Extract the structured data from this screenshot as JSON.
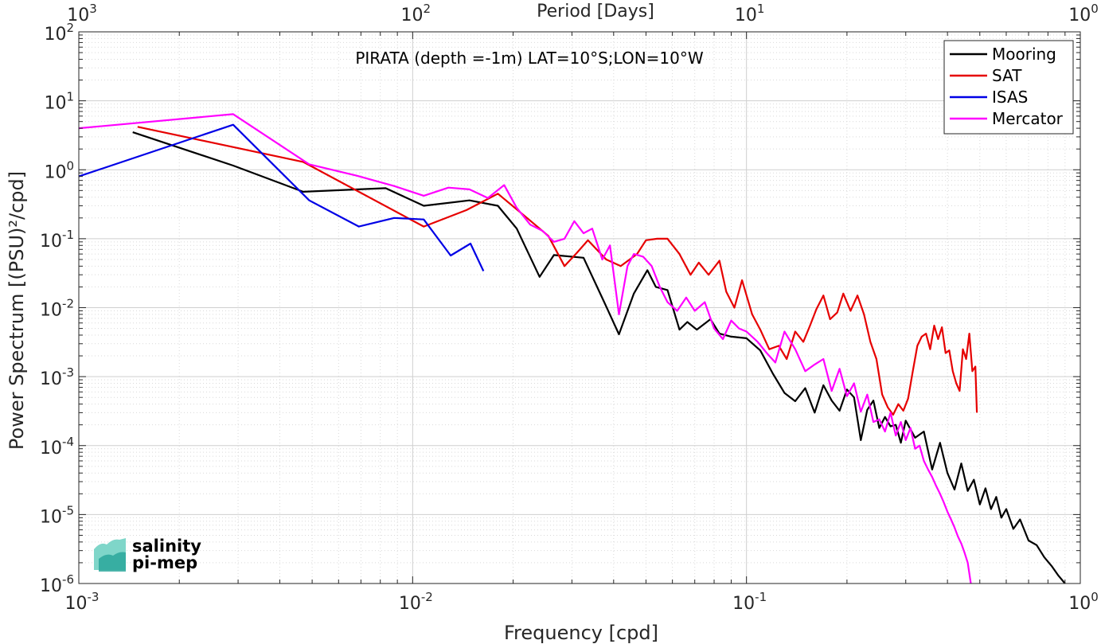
{
  "chart_data": {
    "type": "line",
    "annotation": "PIRATA (depth =-1m) LAT=10°S;LON=10°W",
    "xlabel": "Frequency [cpd]",
    "ylabel": "Power Spectrum [(PSU)²/cpd]",
    "x2label": "Period [Days]",
    "xscale": "log",
    "yscale": "log",
    "xlim": [
      0.001,
      1
    ],
    "ylim": [
      1e-06,
      100
    ],
    "grid": true,
    "legend_position": "top-right",
    "x_ticks": [
      {
        "base": "10",
        "exp": "-3"
      },
      {
        "base": "10",
        "exp": "-2"
      },
      {
        "base": "10",
        "exp": "-1"
      },
      {
        "base": "10",
        "exp": "0"
      }
    ],
    "x2_ticks": [
      {
        "base": "10",
        "exp": "3"
      },
      {
        "base": "10",
        "exp": "2"
      },
      {
        "base": "10",
        "exp": "1"
      },
      {
        "base": "10",
        "exp": "0"
      }
    ],
    "y_ticks": [
      {
        "base": "10",
        "exp": "-6"
      },
      {
        "base": "10",
        "exp": "-5"
      },
      {
        "base": "10",
        "exp": "-4"
      },
      {
        "base": "10",
        "exp": "-3"
      },
      {
        "base": "10",
        "exp": "-2"
      },
      {
        "base": "10",
        "exp": "-1"
      },
      {
        "base": "10",
        "exp": "0"
      },
      {
        "base": "10",
        "exp": "1"
      },
      {
        "base": "10",
        "exp": "2"
      }
    ],
    "series": [
      {
        "name": "Mooring",
        "color": "#000000",
        "x": [
          0.00145,
          0.0029,
          0.0047,
          0.0083,
          0.0108,
          0.0148,
          0.018,
          0.0205,
          0.024,
          0.0265,
          0.0325,
          0.0375,
          0.0415,
          0.046,
          0.0505,
          0.0535,
          0.058,
          0.063,
          0.0665,
          0.071,
          0.078,
          0.083,
          0.09,
          0.1,
          0.11,
          0.12,
          0.13,
          0.14,
          0.15,
          0.16,
          0.17,
          0.18,
          0.19,
          0.2,
          0.21,
          0.22,
          0.23,
          0.24,
          0.25,
          0.26,
          0.27,
          0.28,
          0.29,
          0.3,
          0.32,
          0.34,
          0.36,
          0.38,
          0.4,
          0.42,
          0.44,
          0.46,
          0.48,
          0.5,
          0.52,
          0.54,
          0.56,
          0.58,
          0.6,
          0.63,
          0.66,
          0.7,
          0.74,
          0.78,
          0.82,
          0.86,
          0.9
        ],
        "y": [
          3.5,
          1.15,
          0.48,
          0.54,
          0.3,
          0.36,
          0.3,
          0.14,
          0.028,
          0.058,
          0.053,
          0.012,
          0.0041,
          0.016,
          0.035,
          0.02,
          0.018,
          0.0048,
          0.0062,
          0.0048,
          0.0068,
          0.0042,
          0.0038,
          0.0036,
          0.0024,
          0.0011,
          0.00058,
          0.00044,
          0.00068,
          0.0003,
          0.00075,
          0.00045,
          0.00032,
          0.00065,
          0.0005,
          0.00012,
          0.00033,
          0.00045,
          0.00018,
          0.00026,
          0.00019,
          0.0002,
          0.00011,
          0.00023,
          0.00013,
          0.00016,
          4.5e-05,
          0.00011,
          4e-05,
          2.3e-05,
          5.5e-05,
          2.2e-05,
          3.2e-05,
          1.4e-05,
          2.4e-05,
          1.2e-05,
          1.8e-05,
          9e-06,
          1.2e-05,
          6.2e-06,
          8.5e-06,
          4.2e-06,
          3.6e-06,
          2.4e-06,
          1.8e-06,
          1.3e-06,
          1e-06
        ]
      },
      {
        "name": "SAT",
        "color": "#e60000",
        "x": [
          0.0015,
          0.0047,
          0.0108,
          0.0145,
          0.018,
          0.0215,
          0.0255,
          0.0285,
          0.031,
          0.0335,
          0.038,
          0.042,
          0.047,
          0.05,
          0.054,
          0.058,
          0.063,
          0.068,
          0.072,
          0.077,
          0.083,
          0.087,
          0.092,
          0.097,
          0.104,
          0.11,
          0.117,
          0.125,
          0.132,
          0.14,
          0.148,
          0.155,
          0.162,
          0.17,
          0.178,
          0.187,
          0.195,
          0.205,
          0.215,
          0.225,
          0.235,
          0.245,
          0.255,
          0.265,
          0.275,
          0.285,
          0.295,
          0.305,
          0.315,
          0.325,
          0.335,
          0.345,
          0.355,
          0.365,
          0.375,
          0.385,
          0.395,
          0.405,
          0.415,
          0.425,
          0.435,
          0.445,
          0.455,
          0.465,
          0.475,
          0.485,
          0.49
        ],
        "y": [
          4.2,
          1.3,
          0.15,
          0.26,
          0.45,
          0.22,
          0.11,
          0.04,
          0.062,
          0.095,
          0.05,
          0.04,
          0.06,
          0.095,
          0.1,
          0.1,
          0.06,
          0.03,
          0.045,
          0.03,
          0.048,
          0.017,
          0.01,
          0.025,
          0.008,
          0.0048,
          0.0025,
          0.0028,
          0.0018,
          0.0045,
          0.0032,
          0.0055,
          0.0095,
          0.015,
          0.0068,
          0.0085,
          0.016,
          0.009,
          0.015,
          0.008,
          0.0032,
          0.0018,
          0.00055,
          0.00036,
          0.00028,
          0.0004,
          0.00032,
          0.00048,
          0.0012,
          0.0028,
          0.0038,
          0.0042,
          0.0025,
          0.0055,
          0.0035,
          0.0052,
          0.0022,
          0.0024,
          0.0012,
          0.0008,
          0.00062,
          0.0025,
          0.0018,
          0.0042,
          0.0012,
          0.0014,
          0.0003
        ]
      },
      {
        "name": "ISAS",
        "color": "#0000e6",
        "x": [
          0.001,
          0.0029,
          0.0049,
          0.0069,
          0.0088,
          0.0108,
          0.013,
          0.0149,
          0.0163
        ],
        "y": [
          0.8,
          4.5,
          0.36,
          0.15,
          0.2,
          0.19,
          0.057,
          0.085,
          0.034
        ]
      },
      {
        "name": "Mercator",
        "color": "#ff00ff",
        "x": [
          0.001,
          0.0029,
          0.0049,
          0.0068,
          0.0088,
          0.0108,
          0.0128,
          0.0148,
          0.0168,
          0.0188,
          0.0205,
          0.0225,
          0.0245,
          0.0265,
          0.0285,
          0.0305,
          0.0325,
          0.0345,
          0.037,
          0.039,
          0.0415,
          0.044,
          0.046,
          0.049,
          0.052,
          0.055,
          0.058,
          0.062,
          0.066,
          0.07,
          0.075,
          0.08,
          0.085,
          0.09,
          0.095,
          0.1,
          0.108,
          0.115,
          0.122,
          0.13,
          0.14,
          0.15,
          0.16,
          0.17,
          0.18,
          0.19,
          0.2,
          0.21,
          0.22,
          0.23,
          0.24,
          0.25,
          0.26,
          0.27,
          0.28,
          0.29,
          0.3,
          0.31,
          0.32,
          0.33,
          0.34,
          0.35,
          0.36,
          0.37,
          0.38,
          0.39,
          0.4,
          0.41,
          0.42,
          0.43,
          0.44,
          0.45,
          0.46,
          0.47
        ],
        "y": [
          4.0,
          6.4,
          1.2,
          0.82,
          0.58,
          0.42,
          0.55,
          0.52,
          0.39,
          0.6,
          0.28,
          0.16,
          0.13,
          0.09,
          0.1,
          0.18,
          0.12,
          0.14,
          0.05,
          0.08,
          0.008,
          0.04,
          0.06,
          0.055,
          0.04,
          0.02,
          0.012,
          0.009,
          0.014,
          0.009,
          0.012,
          0.005,
          0.0035,
          0.0065,
          0.005,
          0.0045,
          0.0032,
          0.0022,
          0.0016,
          0.0045,
          0.0025,
          0.0012,
          0.0015,
          0.0018,
          0.00062,
          0.0013,
          0.00052,
          0.0008,
          0.00031,
          0.00055,
          0.00022,
          0.00024,
          0.00016,
          0.0003,
          0.00014,
          0.00022,
          0.00012,
          0.00018,
          9e-05,
          0.0001,
          6e-05,
          4.5e-05,
          3.5e-05,
          2.6e-05,
          2e-05,
          1.5e-05,
          1.1e-05,
          8.5e-06,
          6.5e-06,
          4.8e-06,
          3.8e-06,
          2.8e-06,
          2e-06,
          1e-06
        ]
      }
    ]
  },
  "logo": {
    "line1": "salinity",
    "line2": "pi-mep",
    "color": "#2aa79b"
  }
}
